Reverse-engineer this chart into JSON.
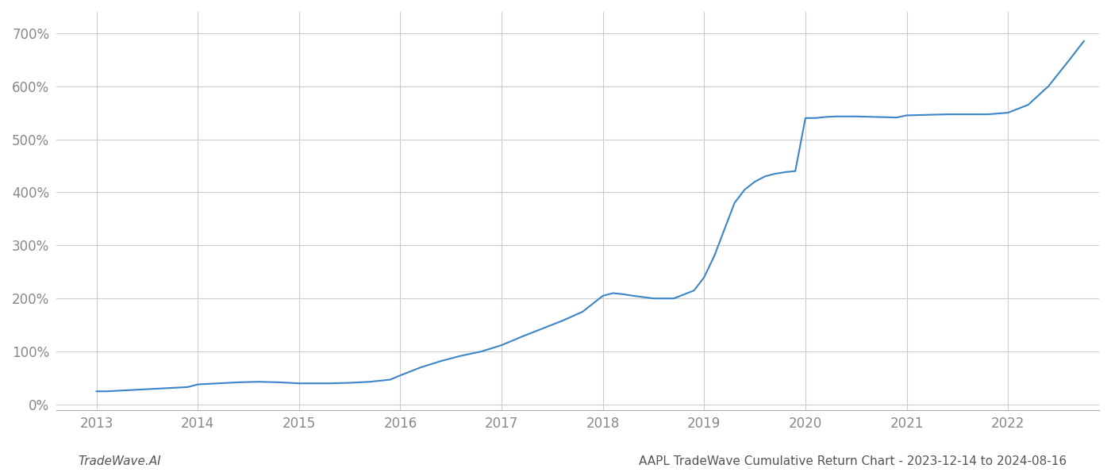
{
  "title": "AAPL TradeWave Cumulative Return Chart - 2023-12-14 to 2024-08-16",
  "footer_left": "TradeWave.AI",
  "line_color": "#3a86c8",
  "background_color": "#ffffff",
  "grid_color": "#cccccc",
  "x_years": [
    2013.0,
    2013.1,
    2013.2,
    2013.3,
    2013.4,
    2013.5,
    2013.6,
    2013.7,
    2013.8,
    2013.9,
    2014.0,
    2014.2,
    2014.4,
    2014.6,
    2014.8,
    2015.0,
    2015.1,
    2015.2,
    2015.3,
    2015.5,
    2015.7,
    2015.9,
    2016.0,
    2016.2,
    2016.4,
    2016.6,
    2016.8,
    2017.0,
    2017.2,
    2017.4,
    2017.6,
    2017.8,
    2018.0,
    2018.1,
    2018.2,
    2018.3,
    2018.5,
    2018.7,
    2018.9,
    2019.0,
    2019.1,
    2019.2,
    2019.3,
    2019.4,
    2019.5,
    2019.6,
    2019.7,
    2019.8,
    2019.9,
    2020.0,
    2020.1,
    2020.2,
    2020.3,
    2020.5,
    2020.7,
    2020.9,
    2021.0,
    2021.2,
    2021.4,
    2021.6,
    2021.8,
    2022.0,
    2022.2,
    2022.4,
    2022.6,
    2022.75
  ],
  "y_values": [
    25,
    25,
    26,
    27,
    28,
    29,
    30,
    31,
    32,
    33,
    38,
    40,
    42,
    43,
    42,
    40,
    40,
    40,
    40,
    41,
    43,
    47,
    55,
    70,
    82,
    92,
    100,
    112,
    128,
    143,
    158,
    175,
    205,
    210,
    208,
    205,
    200,
    200,
    215,
    240,
    280,
    330,
    380,
    405,
    420,
    430,
    435,
    438,
    440,
    540,
    540,
    542,
    543,
    543,
    542,
    541,
    545,
    546,
    547,
    547,
    547,
    550,
    565,
    600,
    648,
    685
  ],
  "xlim": [
    2012.6,
    2022.9
  ],
  "ylim": [
    -10,
    740
  ],
  "yticks": [
    0,
    100,
    200,
    300,
    400,
    500,
    600,
    700
  ],
  "xticks": [
    2013,
    2014,
    2015,
    2016,
    2017,
    2018,
    2019,
    2020,
    2021,
    2022
  ],
  "title_fontsize": 11,
  "footer_fontsize": 11,
  "tick_fontsize": 12,
  "tick_color": "#888888",
  "line_width": 1.5,
  "spine_color": "#aaaaaa"
}
